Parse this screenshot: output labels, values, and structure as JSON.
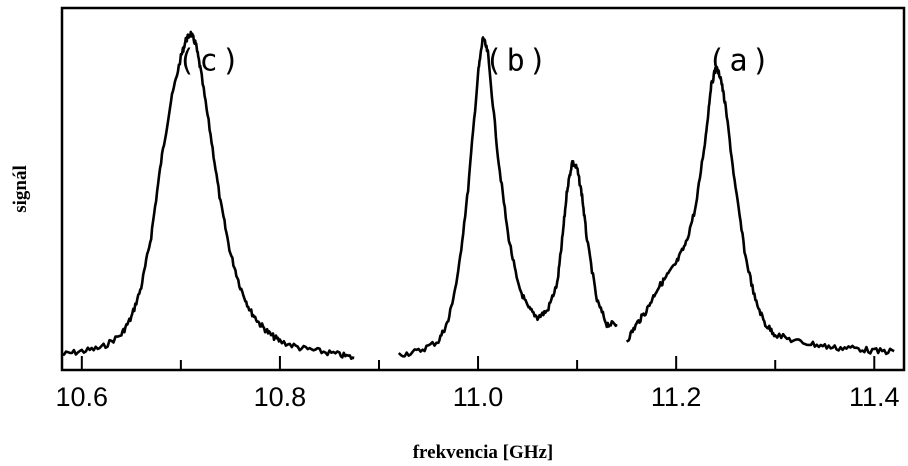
{
  "chart_data": {
    "type": "line",
    "xlabel": "frekvencia [GHz]",
    "ylabel": "signál",
    "xlim": [
      10.58,
      11.43
    ],
    "ylim": [
      0,
      1.0
    ],
    "grid": false,
    "x_ticks": [
      10.6,
      10.7,
      10.8,
      10.9,
      11.0,
      11.1,
      11.2,
      11.3,
      11.4
    ],
    "x_tick_labels": [
      "10.6",
      "10.8",
      "11.0",
      "11.2",
      "11.4"
    ],
    "annotations": [
      {
        "text": "(c)",
        "x": 10.73,
        "y": 0.85
      },
      {
        "text": "(b)",
        "x": 11.04,
        "y": 0.85
      },
      {
        "text": "(a)",
        "x": 11.265,
        "y": 0.85
      }
    ],
    "series": [
      {
        "x": [
          10.58,
          10.6,
          10.62,
          10.64,
          10.65,
          10.66,
          10.67,
          10.68,
          10.69,
          10.7,
          10.705,
          10.71,
          10.715,
          10.72,
          10.73,
          10.74,
          10.75,
          10.76,
          10.77,
          10.78,
          10.79,
          10.8,
          10.82,
          10.84,
          10.86,
          10.875
        ],
        "y": [
          0.01,
          0.02,
          0.03,
          0.07,
          0.12,
          0.21,
          0.36,
          0.58,
          0.76,
          0.89,
          0.94,
          0.96,
          0.93,
          0.85,
          0.66,
          0.46,
          0.31,
          0.21,
          0.14,
          0.1,
          0.07,
          0.05,
          0.03,
          0.02,
          0.01,
          0.0
        ]
      },
      {
        "x": [
          10.92,
          10.94,
          10.96,
          10.97,
          10.98,
          10.99,
          11.0,
          11.005,
          11.01,
          11.02,
          11.03,
          11.04,
          11.05,
          11.06,
          11.07,
          11.08,
          11.085,
          11.09,
          11.095,
          11.1,
          11.105,
          11.11,
          11.12,
          11.13,
          11.14
        ],
        "y": [
          0.01,
          0.02,
          0.05,
          0.11,
          0.25,
          0.5,
          0.84,
          0.95,
          0.9,
          0.6,
          0.37,
          0.22,
          0.15,
          0.12,
          0.14,
          0.22,
          0.35,
          0.5,
          0.58,
          0.56,
          0.48,
          0.35,
          0.17,
          0.1,
          0.1
        ]
      },
      {
        "x": [
          11.15,
          11.16,
          11.17,
          11.18,
          11.19,
          11.2,
          11.21,
          11.22,
          11.23,
          11.235,
          11.24,
          11.245,
          11.25,
          11.26,
          11.27,
          11.28,
          11.29,
          11.3,
          11.32,
          11.34,
          11.36,
          11.38,
          11.4,
          11.42
        ],
        "y": [
          0.05,
          0.1,
          0.14,
          0.2,
          0.24,
          0.28,
          0.34,
          0.45,
          0.66,
          0.8,
          0.86,
          0.83,
          0.74,
          0.5,
          0.3,
          0.17,
          0.1,
          0.07,
          0.05,
          0.04,
          0.03,
          0.03,
          0.02,
          0.02
        ]
      }
    ]
  }
}
